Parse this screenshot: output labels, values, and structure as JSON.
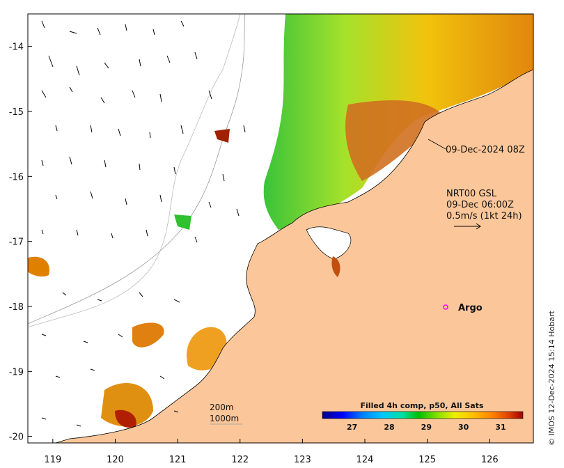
{
  "map": {
    "lon_ticks": [
      "119",
      "120",
      "121",
      "122",
      "123",
      "124",
      "125",
      "126"
    ],
    "lat_ticks": [
      "-14",
      "-15",
      "-16",
      "-17",
      "-18",
      "-19",
      "-20"
    ],
    "lon_range": [
      118.6,
      126.7
    ],
    "lat_range": [
      -20.1,
      -13.5
    ]
  },
  "annotations": {
    "sst_time": "09-Dec-2024 08Z",
    "currents_source": "NRT00 GSL",
    "currents_time": "09-Dec 06:00Z",
    "vector_scale": "0.5m/s (1kt 24h)",
    "argo_label": "Argo",
    "contour_200": "200m",
    "contour_1000": "1000m"
  },
  "colorbar": {
    "title": "Filled 4h comp, p50, All Sats",
    "ticks": [
      "27",
      "28",
      "29",
      "30",
      "31"
    ],
    "range": [
      26.2,
      31.6
    ],
    "colors": [
      "#000080",
      "#0000ff",
      "#0080ff",
      "#00c8ff",
      "#00e0a0",
      "#00c000",
      "#80e000",
      "#f0f000",
      "#ffc000",
      "#ff8000",
      "#e04000",
      "#a00000"
    ]
  },
  "credit": "© IMOS 12-Dec-2024 15:14 Hobart",
  "colors": {
    "land": "#fbc79a",
    "ocean": "#ffffff",
    "argo": "#ff00ff"
  }
}
